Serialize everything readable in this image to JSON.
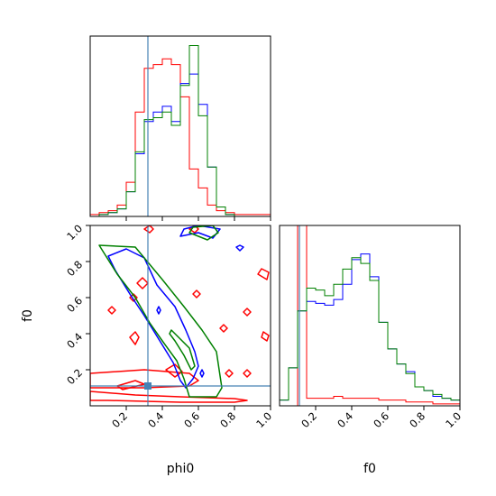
{
  "chart_data": {
    "type": "corner",
    "parameters": [
      "phi0",
      "f0"
    ],
    "xlabel_phi0": "phi0",
    "xlabel_f0": "f0",
    "ylabel_f0": "f0",
    "range": [
      0,
      1
    ],
    "ticks": [
      "0.2",
      "0.4",
      "0.6",
      "0.8",
      "1.0"
    ],
    "tick_values": [
      0.2,
      0.4,
      0.6,
      0.8,
      1.0
    ],
    "truth": {
      "phi0": 0.32,
      "f0": 0.11,
      "color": "#4682b4"
    },
    "series_colors": {
      "red": "#ff0000",
      "blue": "#0000ff",
      "green": "#008000"
    },
    "hist_phi0": {
      "bin_edges": [
        0.0,
        0.05,
        0.1,
        0.15,
        0.2,
        0.25,
        0.3,
        0.35,
        0.4,
        0.45,
        0.5,
        0.55,
        0.6,
        0.65,
        0.7,
        0.75,
        0.8,
        0.85,
        0.9,
        0.95,
        1.0
      ],
      "red": [
        0.01,
        0.02,
        0.03,
        0.06,
        0.18,
        0.55,
        0.78,
        0.8,
        0.83,
        0.8,
        0.63,
        0.25,
        0.15,
        0.06,
        0.03,
        0.02,
        0.01,
        0.01,
        0.01,
        0.01
      ],
      "blue": [
        0.0,
        0.01,
        0.02,
        0.04,
        0.13,
        0.33,
        0.5,
        0.55,
        0.58,
        0.5,
        0.7,
        0.75,
        0.59,
        0.26,
        0.05,
        0.01,
        0.0,
        0.0,
        0.0,
        0.0
      ],
      "green": [
        0.0,
        0.01,
        0.02,
        0.04,
        0.13,
        0.34,
        0.51,
        0.52,
        0.55,
        0.48,
        0.69,
        0.9,
        0.53,
        0.26,
        0.05,
        0.01,
        0.0,
        0.0,
        0.0,
        0.0
      ]
    },
    "hist_f0": {
      "bin_edges": [
        0.0,
        0.05,
        0.1,
        0.15,
        0.2,
        0.25,
        0.3,
        0.35,
        0.4,
        0.45,
        0.5,
        0.55,
        0.6,
        0.65,
        0.7,
        0.75,
        0.8,
        0.85,
        0.9,
        0.95,
        1.0
      ],
      "red": [
        0.0,
        0.0,
        1.1,
        0.04,
        0.04,
        0.04,
        0.05,
        0.04,
        0.04,
        0.04,
        0.04,
        0.03,
        0.03,
        0.03,
        0.02,
        0.02,
        0.02,
        0.01,
        0.01,
        0.01
      ],
      "blue": [
        0.03,
        0.2,
        0.5,
        0.55,
        0.54,
        0.53,
        0.56,
        0.64,
        0.77,
        0.8,
        0.68,
        0.44,
        0.3,
        0.22,
        0.18,
        0.1,
        0.08,
        0.05,
        0.04,
        0.03
      ],
      "green": [
        0.03,
        0.2,
        0.5,
        0.62,
        0.61,
        0.58,
        0.64,
        0.72,
        0.78,
        0.75,
        0.66,
        0.44,
        0.3,
        0.22,
        0.17,
        0.1,
        0.08,
        0.06,
        0.04,
        0.03
      ]
    },
    "contours_2d": {
      "red": [
        [
          [
            0.0,
            0.18
          ],
          [
            0.3,
            0.2
          ],
          [
            0.55,
            0.18
          ],
          [
            0.6,
            0.14
          ],
          [
            0.55,
            0.11
          ],
          [
            0.3,
            0.1
          ],
          [
            0.0,
            0.1
          ]
        ],
        [
          [
            0.0,
            0.08
          ],
          [
            0.25,
            0.06
          ],
          [
            0.5,
            0.05
          ],
          [
            0.8,
            0.04
          ],
          [
            0.87,
            0.03
          ],
          [
            0.8,
            0.02
          ],
          [
            0.5,
            0.02
          ],
          [
            0.1,
            0.03
          ],
          [
            0.0,
            0.03
          ]
        ],
        [
          [
            0.22,
            0.38
          ],
          [
            0.25,
            0.34
          ],
          [
            0.27,
            0.38
          ],
          [
            0.25,
            0.41
          ]
        ],
        [
          [
            0.42,
            0.2
          ],
          [
            0.47,
            0.16
          ],
          [
            0.51,
            0.19
          ],
          [
            0.47,
            0.23
          ]
        ],
        [
          [
            0.26,
            0.68
          ],
          [
            0.29,
            0.65
          ],
          [
            0.32,
            0.68
          ],
          [
            0.29,
            0.71
          ]
        ],
        [
          [
            0.1,
            0.53
          ],
          [
            0.12,
            0.51
          ],
          [
            0.14,
            0.53
          ],
          [
            0.12,
            0.55
          ]
        ],
        [
          [
            0.22,
            0.6
          ],
          [
            0.24,
            0.58
          ],
          [
            0.26,
            0.6
          ],
          [
            0.24,
            0.62
          ]
        ],
        [
          [
            0.55,
            0.98
          ],
          [
            0.58,
            0.96
          ],
          [
            0.6,
            0.98
          ],
          [
            0.58,
            1.0
          ]
        ],
        [
          [
            0.85,
            0.52
          ],
          [
            0.87,
            0.5
          ],
          [
            0.89,
            0.52
          ],
          [
            0.87,
            0.54
          ]
        ],
        [
          [
            0.72,
            0.43
          ],
          [
            0.74,
            0.41
          ],
          [
            0.76,
            0.43
          ],
          [
            0.74,
            0.45
          ]
        ],
        [
          [
            0.57,
            0.62
          ],
          [
            0.59,
            0.6
          ],
          [
            0.61,
            0.62
          ],
          [
            0.59,
            0.64
          ]
        ],
        [
          [
            0.3,
            0.98
          ],
          [
            0.33,
            0.96
          ],
          [
            0.35,
            0.98
          ],
          [
            0.33,
            1.0
          ]
        ],
        [
          [
            0.93,
            0.73
          ],
          [
            0.98,
            0.7
          ],
          [
            0.99,
            0.74
          ],
          [
            0.95,
            0.76
          ]
        ],
        [
          [
            0.95,
            0.38
          ],
          [
            0.98,
            0.36
          ],
          [
            0.99,
            0.39
          ],
          [
            0.96,
            0.41
          ]
        ],
        [
          [
            0.75,
            0.18
          ],
          [
            0.77,
            0.16
          ],
          [
            0.79,
            0.18
          ],
          [
            0.77,
            0.2
          ]
        ],
        [
          [
            0.85,
            0.18
          ],
          [
            0.87,
            0.16
          ],
          [
            0.89,
            0.18
          ],
          [
            0.87,
            0.2
          ]
        ],
        [
          [
            0.15,
            0.11
          ],
          [
            0.18,
            0.09
          ],
          [
            0.3,
            0.12
          ],
          [
            0.25,
            0.14
          ]
        ]
      ],
      "blue": [
        [
          [
            0.1,
            0.83
          ],
          [
            0.2,
            0.87
          ],
          [
            0.3,
            0.82
          ],
          [
            0.37,
            0.67
          ],
          [
            0.47,
            0.55
          ],
          [
            0.53,
            0.42
          ],
          [
            0.58,
            0.3
          ],
          [
            0.6,
            0.22
          ],
          [
            0.57,
            0.15
          ],
          [
            0.53,
            0.1
          ],
          [
            0.5,
            0.14
          ],
          [
            0.46,
            0.24
          ],
          [
            0.38,
            0.37
          ],
          [
            0.3,
            0.5
          ],
          [
            0.22,
            0.62
          ],
          [
            0.14,
            0.75
          ]
        ],
        [
          [
            0.5,
            0.94
          ],
          [
            0.6,
            0.96
          ],
          [
            0.68,
            0.93
          ],
          [
            0.72,
            0.98
          ],
          [
            0.6,
            1.0
          ],
          [
            0.52,
            0.98
          ]
        ],
        [
          [
            0.81,
            0.88
          ],
          [
            0.83,
            0.86
          ],
          [
            0.85,
            0.88
          ],
          [
            0.83,
            0.89
          ]
        ],
        [
          [
            0.61,
            0.18
          ],
          [
            0.62,
            0.16
          ],
          [
            0.63,
            0.18
          ],
          [
            0.62,
            0.2
          ]
        ],
        [
          [
            0.37,
            0.53
          ],
          [
            0.38,
            0.51
          ],
          [
            0.39,
            0.53
          ],
          [
            0.38,
            0.55
          ]
        ]
      ],
      "green": [
        [
          [
            0.05,
            0.89
          ],
          [
            0.25,
            0.88
          ],
          [
            0.4,
            0.7
          ],
          [
            0.52,
            0.55
          ],
          [
            0.62,
            0.42
          ],
          [
            0.7,
            0.3
          ],
          [
            0.73,
            0.1
          ],
          [
            0.7,
            0.05
          ],
          [
            0.62,
            0.05
          ],
          [
            0.55,
            0.05
          ],
          [
            0.52,
            0.15
          ],
          [
            0.48,
            0.25
          ],
          [
            0.4,
            0.36
          ],
          [
            0.33,
            0.46
          ],
          [
            0.25,
            0.6
          ],
          [
            0.15,
            0.73
          ]
        ],
        [
          [
            0.45,
            0.42
          ],
          [
            0.5,
            0.37
          ],
          [
            0.55,
            0.32
          ],
          [
            0.58,
            0.22
          ],
          [
            0.56,
            0.2
          ],
          [
            0.52,
            0.28
          ],
          [
            0.47,
            0.36
          ],
          [
            0.44,
            0.4
          ]
        ],
        [
          [
            0.55,
            0.96
          ],
          [
            0.65,
            0.92
          ],
          [
            0.71,
            0.96
          ],
          [
            0.68,
            1.0
          ],
          [
            0.57,
            0.99
          ]
        ]
      ]
    }
  }
}
